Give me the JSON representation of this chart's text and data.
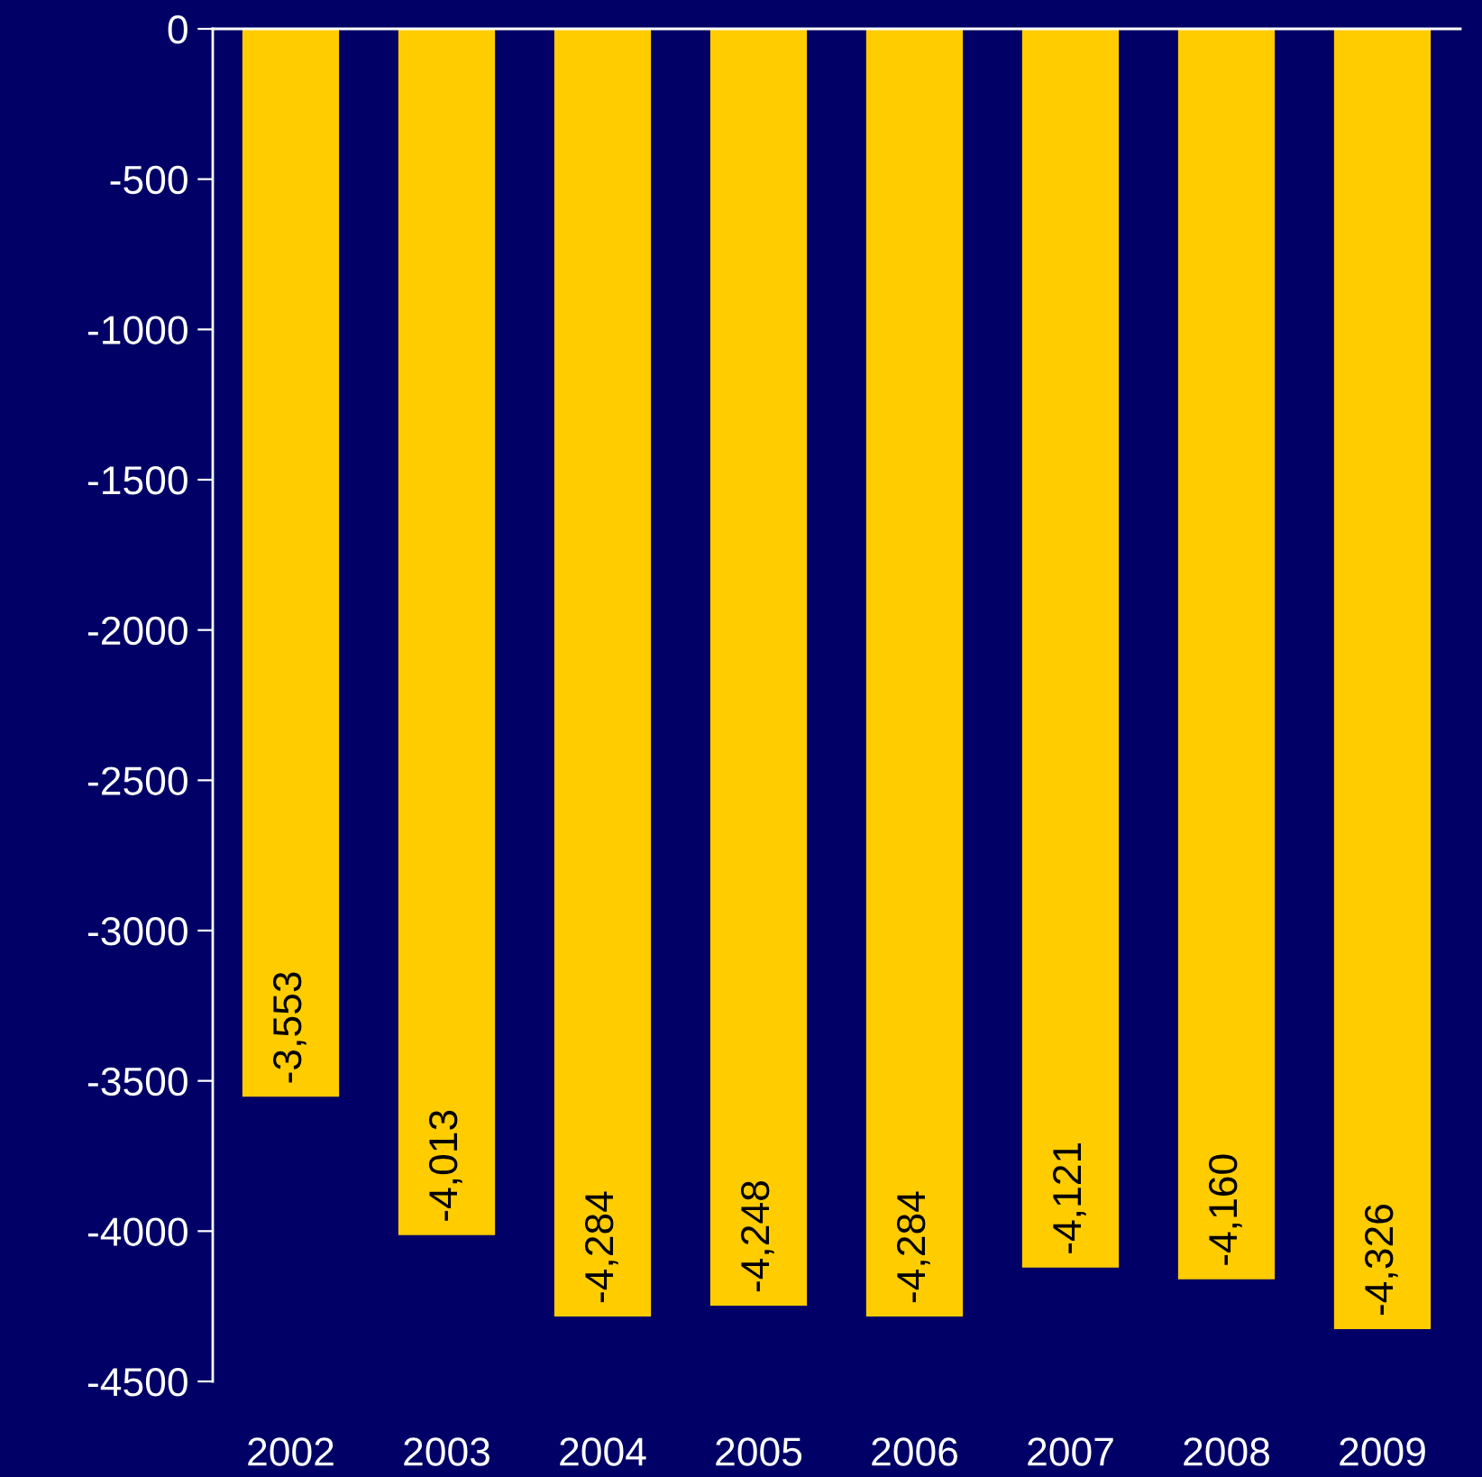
{
  "chart_data": {
    "type": "bar",
    "categories": [
      "2002",
      "2003",
      "2004",
      "2005",
      "2006",
      "2007",
      "2008",
      "2009"
    ],
    "series": [
      {
        "color": "#ffcc00",
        "values": [
          -3553,
          -4013,
          -4284,
          -4248,
          -4284,
          -4121,
          -4160,
          -4326
        ],
        "value_labels": [
          "-3,553",
          "-4,013",
          "-4,284",
          "-4,248",
          "-4,284",
          "-4,121",
          "-4,160",
          "-4,326"
        ]
      }
    ],
    "ylim": [
      -4500,
      0
    ],
    "yticks": [
      0,
      -500,
      -1000,
      -1500,
      -2000,
      -2500,
      -3000,
      -3500,
      -4000,
      -4500
    ],
    "grid": false,
    "legend": false
  }
}
